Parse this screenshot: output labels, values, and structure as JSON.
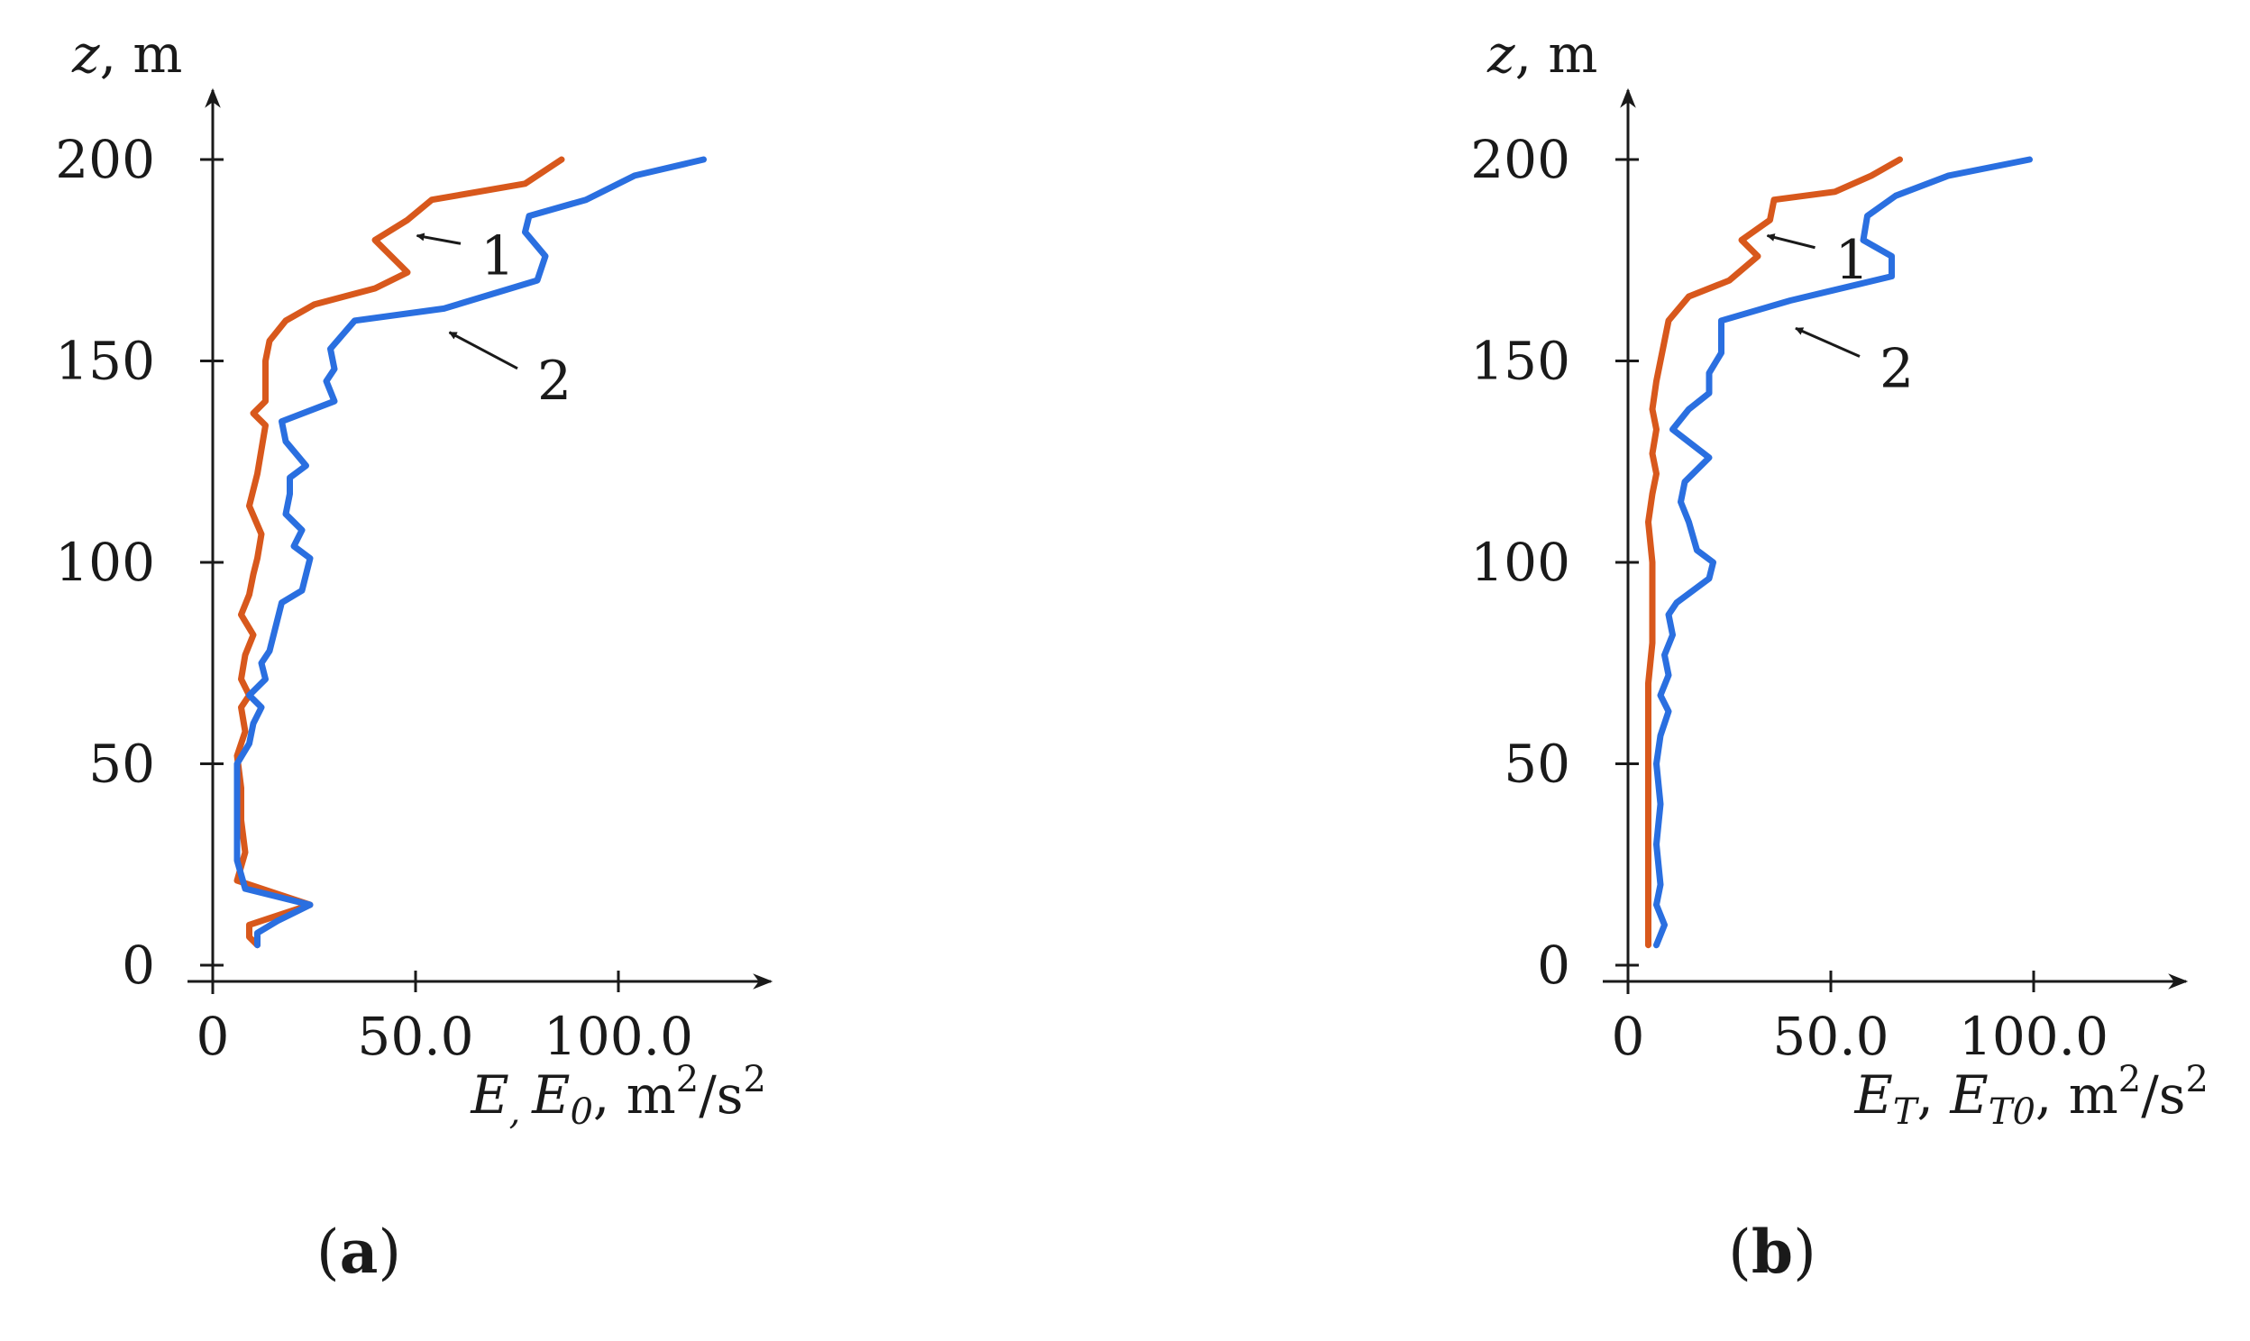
{
  "colors": {
    "series_1": "#d8581c",
    "series_2": "#2a6fe0",
    "axis": "#1a1a1a"
  },
  "chart_data": [
    {
      "type": "line",
      "panel_label": "a",
      "ylabel": "z, m",
      "xlabel_parts": [
        "E",
        ", ",
        "E",
        "0",
        ", m",
        "2",
        "/s",
        "2"
      ],
      "xticks": [
        "0",
        "50.0",
        "100.0"
      ],
      "yticks": [
        "0",
        "50",
        "100",
        "150",
        "200"
      ],
      "xlim": [
        0,
        140
      ],
      "ylim": [
        -3,
        215
      ],
      "series": [
        {
          "name": "1",
          "points": [
            [
              11,
              5
            ],
            [
              9,
              7
            ],
            [
              9,
              10
            ],
            [
              12,
              11
            ],
            [
              24,
              15
            ],
            [
              6,
              21
            ],
            [
              8,
              28
            ],
            [
              7,
              36
            ],
            [
              7,
              44
            ],
            [
              6,
              52
            ],
            [
              8,
              58
            ],
            [
              7,
              64
            ],
            [
              9,
              67
            ],
            [
              7,
              71
            ],
            [
              8,
              77
            ],
            [
              10,
              82
            ],
            [
              7,
              87
            ],
            [
              9,
              92
            ],
            [
              10,
              97
            ],
            [
              11,
              101
            ],
            [
              12,
              107
            ],
            [
              9,
              114
            ],
            [
              11,
              122
            ],
            [
              12,
              128
            ],
            [
              13,
              134
            ],
            [
              10,
              137
            ],
            [
              13,
              140
            ],
            [
              13,
              145
            ],
            [
              13,
              150
            ],
            [
              14,
              155
            ],
            [
              18,
              160
            ],
            [
              25,
              164
            ],
            [
              40,
              168
            ],
            [
              48,
              172
            ],
            [
              44,
              176
            ],
            [
              40,
              180
            ],
            [
              48,
              185
            ],
            [
              54,
              190
            ],
            [
              77,
              194
            ],
            [
              86,
              200
            ]
          ]
        },
        {
          "name": "2",
          "points": [
            [
              11,
              5
            ],
            [
              11,
              8
            ],
            [
              16,
              11
            ],
            [
              24,
              15
            ],
            [
              8,
              19
            ],
            [
              6,
              26
            ],
            [
              6,
              36
            ],
            [
              6,
              45
            ],
            [
              6,
              50
            ],
            [
              9,
              55
            ],
            [
              10,
              60
            ],
            [
              12,
              64
            ],
            [
              9,
              67
            ],
            [
              13,
              71
            ],
            [
              12,
              75
            ],
            [
              14,
              78
            ],
            [
              15,
              82
            ],
            [
              16,
              86
            ],
            [
              17,
              90
            ],
            [
              22,
              93
            ],
            [
              23,
              97
            ],
            [
              24,
              101
            ],
            [
              20,
              104
            ],
            [
              22,
              108
            ],
            [
              18,
              112
            ],
            [
              19,
              117
            ],
            [
              19,
              121
            ],
            [
              23,
              124
            ],
            [
              18,
              130
            ],
            [
              17,
              135
            ],
            [
              30,
              140
            ],
            [
              28,
              145
            ],
            [
              30,
              148
            ],
            [
              29,
              153
            ],
            [
              35,
              160
            ],
            [
              57,
              163
            ],
            [
              80,
              170
            ],
            [
              82,
              176
            ],
            [
              77,
              182
            ],
            [
              78,
              186
            ],
            [
              92,
              190
            ],
            [
              104,
              196
            ],
            [
              121,
              200
            ]
          ]
        }
      ],
      "annotations": [
        {
          "text": "1",
          "series": "1",
          "anchor": [
            49,
            182
          ],
          "label_at": [
            66,
            176
          ]
        },
        {
          "text": "2",
          "series": "2",
          "anchor": [
            57,
            158
          ],
          "label_at": [
            80,
            145
          ]
        }
      ]
    },
    {
      "type": "line",
      "panel_label": "b",
      "ylabel": "z, m",
      "xlabel_parts": [
        "E",
        "T",
        ", ",
        "E",
        "T0",
        ", m",
        "2",
        "/s",
        "2"
      ],
      "xticks": [
        "0",
        "50.0",
        "100.0"
      ],
      "yticks": [
        "0",
        "50",
        "100",
        "150",
        "200"
      ],
      "xlim": [
        0,
        140
      ],
      "ylim": [
        -3,
        215
      ],
      "series": [
        {
          "name": "1",
          "points": [
            [
              5,
              5
            ],
            [
              5,
              10
            ],
            [
              5,
              20
            ],
            [
              5,
              30
            ],
            [
              5,
              40
            ],
            [
              5,
              50
            ],
            [
              5,
              60
            ],
            [
              5,
              70
            ],
            [
              6,
              80
            ],
            [
              6,
              90
            ],
            [
              6,
              100
            ],
            [
              5,
              110
            ],
            [
              6,
              117
            ],
            [
              7,
              122
            ],
            [
              6,
              127
            ],
            [
              7,
              133
            ],
            [
              6,
              138
            ],
            [
              7,
              145
            ],
            [
              8,
              150
            ],
            [
              10,
              160
            ],
            [
              15,
              166
            ],
            [
              25,
              170
            ],
            [
              32,
              176
            ],
            [
              28,
              180
            ],
            [
              35,
              185
            ],
            [
              36,
              190
            ],
            [
              51,
              192
            ],
            [
              60,
              196
            ],
            [
              67,
              200
            ]
          ]
        },
        {
          "name": "2",
          "points": [
            [
              7,
              5
            ],
            [
              9,
              10
            ],
            [
              7,
              15
            ],
            [
              8,
              20
            ],
            [
              7,
              30
            ],
            [
              8,
              40
            ],
            [
              7,
              50
            ],
            [
              8,
              57
            ],
            [
              10,
              63
            ],
            [
              8,
              67
            ],
            [
              10,
              72
            ],
            [
              9,
              77
            ],
            [
              11,
              82
            ],
            [
              10,
              87
            ],
            [
              12,
              90
            ],
            [
              20,
              96
            ],
            [
              21,
              100
            ],
            [
              17,
              103
            ],
            [
              15,
              110
            ],
            [
              13,
              115
            ],
            [
              14,
              120
            ],
            [
              20,
              126
            ],
            [
              11,
              133
            ],
            [
              15,
              138
            ],
            [
              20,
              142
            ],
            [
              20,
              147
            ],
            [
              23,
              152
            ],
            [
              23,
              160
            ],
            [
              40,
              165
            ],
            [
              65,
              171
            ],
            [
              65,
              176
            ],
            [
              58,
              180
            ],
            [
              59,
              186
            ],
            [
              66,
              191
            ],
            [
              79,
              196
            ],
            [
              99,
              200
            ]
          ]
        }
      ],
      "annotations": [
        {
          "text": "1",
          "series": "1",
          "anchor": [
            33,
            182
          ],
          "label_at": [
            51,
            175
          ]
        },
        {
          "text": "2",
          "series": "2",
          "anchor": [
            40,
            159
          ],
          "label_at": [
            62,
            148
          ]
        }
      ]
    }
  ]
}
